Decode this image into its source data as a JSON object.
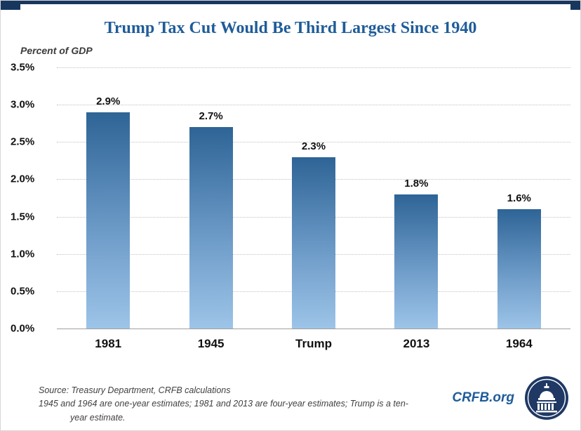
{
  "window": {
    "top_bar_color": "#17375E"
  },
  "chart_data": {
    "type": "bar",
    "title": "Trump Tax Cut Would Be Third Largest Since 1940",
    "ylabel": "Percent of GDP",
    "categories": [
      "1981",
      "1945",
      "Trump",
      "2013",
      "1964"
    ],
    "values": [
      2.9,
      2.7,
      2.3,
      1.8,
      1.6
    ],
    "data_labels": [
      "2.9%",
      "2.7%",
      "2.3%",
      "1.8%",
      "1.6%"
    ],
    "yticks": [
      "3.5%",
      "3.0%",
      "2.5%",
      "2.0%",
      "1.5%",
      "1.0%",
      "0.5%",
      "0.0%"
    ],
    "ylim": [
      0,
      3.5
    ],
    "ytick_step": 0.5,
    "grid": true,
    "legend": "none",
    "bar_color_top": "#2E6496",
    "bar_color_bottom": "#9DC4E8",
    "title_color": "#1F5C99"
  },
  "footer": {
    "source_line1": "Source: Treasury Department, CRFB calculations",
    "source_line2": "1945 and 1964 are one-year estimates; 1981 and 2013 are four-year estimates; Trump is a ten-year estimate.",
    "brand": "CRFB.org",
    "logo": "capitol-dome-icon"
  }
}
